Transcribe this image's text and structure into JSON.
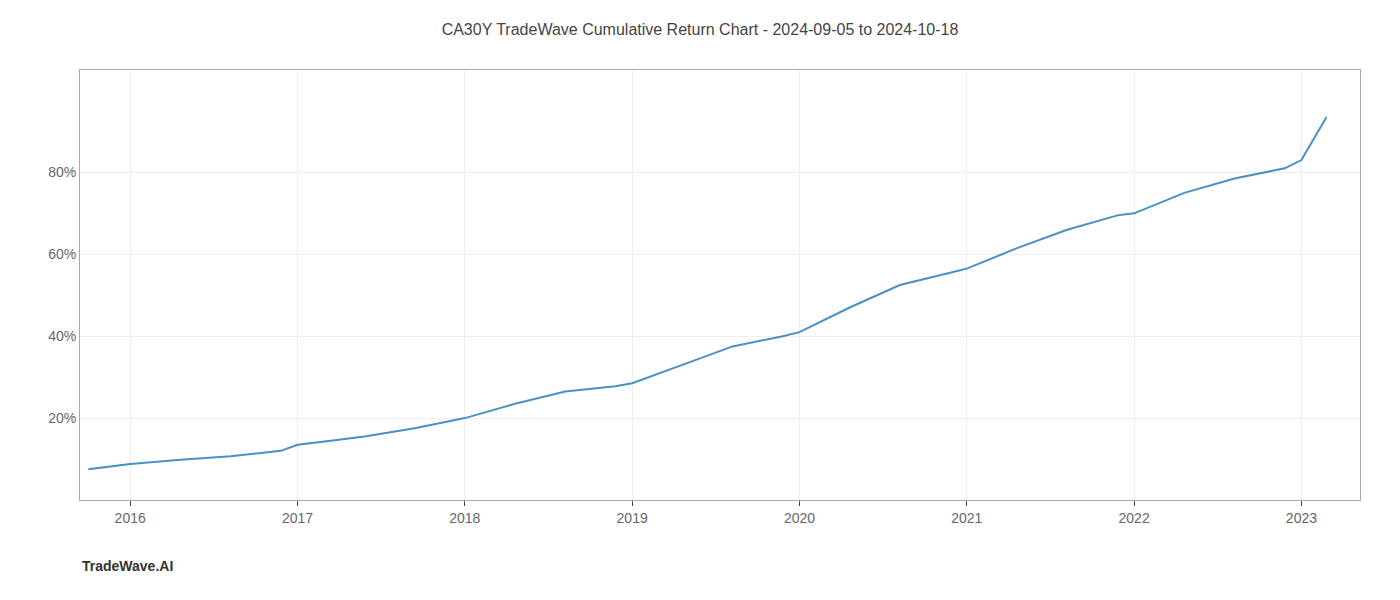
{
  "chart_data": {
    "type": "line",
    "title": "CA30Y TradeWave Cumulative Return Chart - 2024-09-05 to 2024-10-18",
    "annotations": [
      {
        "text": "TradeWave.AI"
      }
    ],
    "x": [
      2015.75,
      2016.0,
      2016.3,
      2016.6,
      2016.9,
      2017.0,
      2017.15,
      2017.4,
      2017.7,
      2018.0,
      2018.3,
      2018.6,
      2018.9,
      2019.0,
      2019.3,
      2019.6,
      2019.9,
      2020.0,
      2020.3,
      2020.6,
      2020.9,
      2021.0,
      2021.3,
      2021.6,
      2021.9,
      2022.0,
      2022.3,
      2022.6,
      2022.9,
      2023.0,
      2023.15
    ],
    "values": [
      0.075,
      0.088,
      0.098,
      0.107,
      0.12,
      0.135,
      0.142,
      0.155,
      0.175,
      0.2,
      0.235,
      0.265,
      0.278,
      0.285,
      0.33,
      0.375,
      0.4,
      0.41,
      0.47,
      0.525,
      0.555,
      0.565,
      0.615,
      0.66,
      0.695,
      0.7,
      0.75,
      0.785,
      0.81,
      0.83,
      0.935
    ],
    "color": "#4a90c4",
    "xlim": [
      2015.7,
      2023.35
    ],
    "xticks": [
      2016,
      2017,
      2018,
      2019,
      2020,
      2021,
      2022,
      2023
    ],
    "ylim": [
      0.0,
      1.05
    ],
    "yticks": [
      {
        "value": 0.2,
        "label": "20%"
      },
      {
        "value": 0.4,
        "label": "40%"
      },
      {
        "value": 0.6,
        "label": "60%"
      },
      {
        "value": 0.8,
        "label": "80%"
      }
    ],
    "grid": true
  }
}
